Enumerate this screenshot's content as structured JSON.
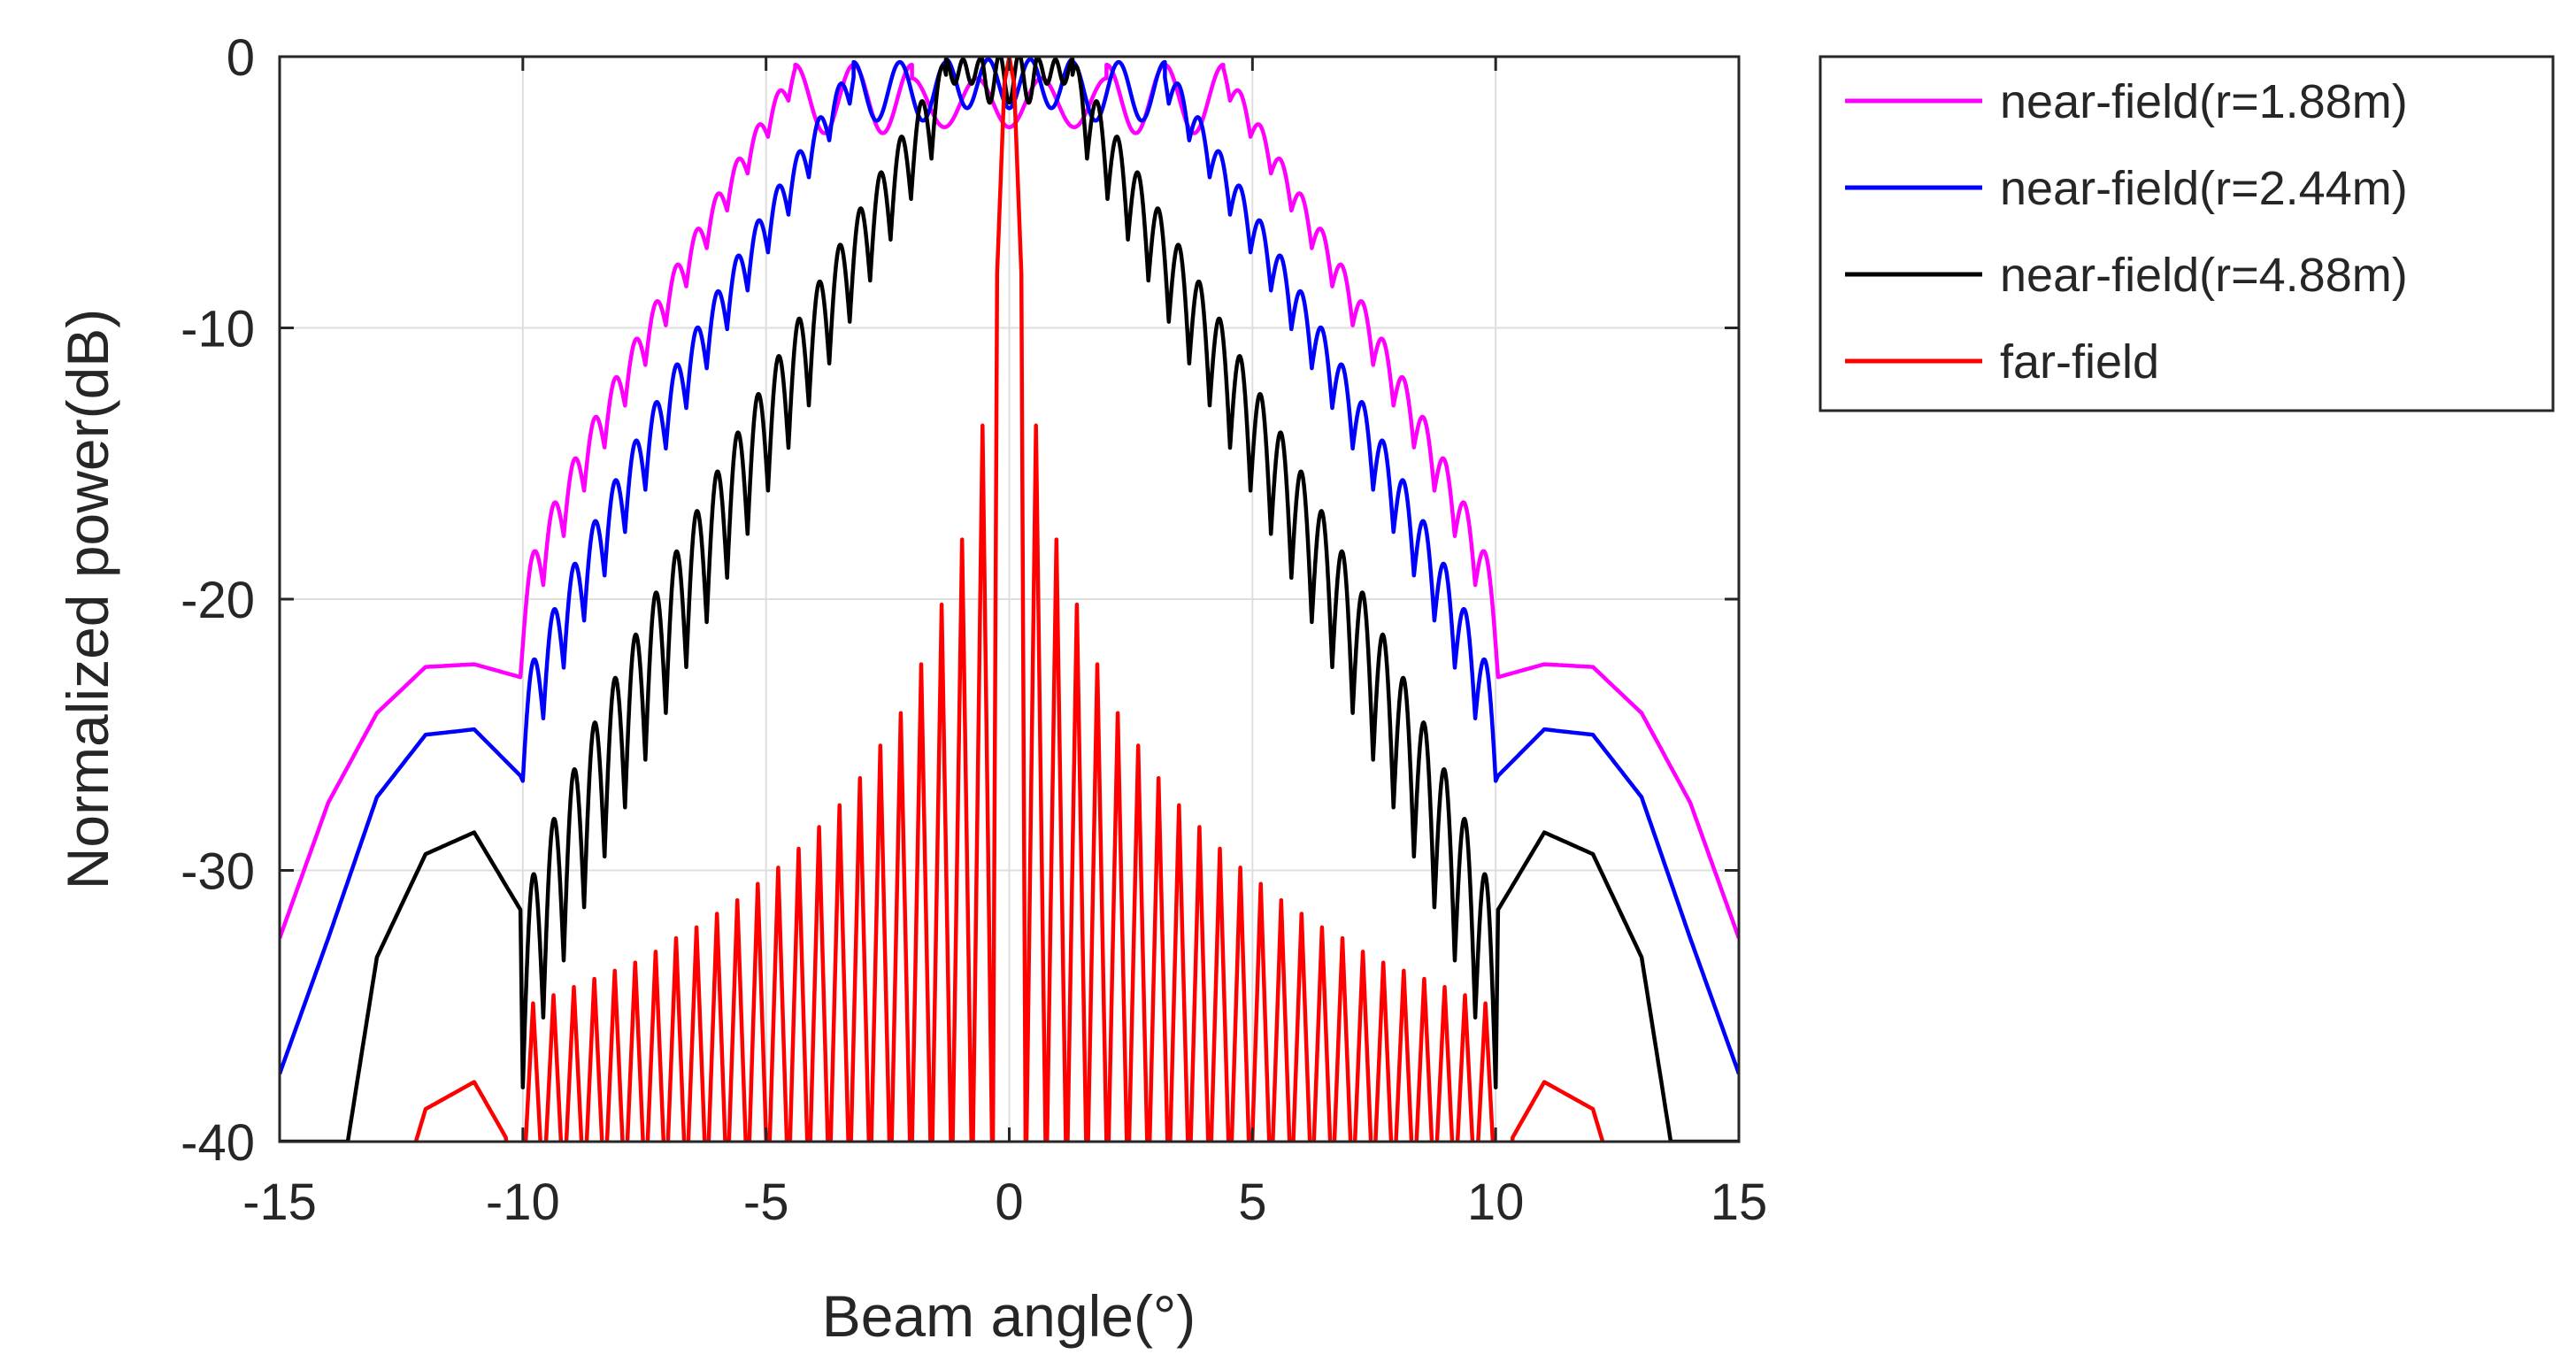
{
  "chart_data": {
    "type": "line",
    "title": "",
    "xlabel": "Beam angle(°)",
    "ylabel": "Normalized power(dB)",
    "xlim": [
      -15,
      15
    ],
    "ylim": [
      -40,
      0
    ],
    "xticks": [
      -15,
      -10,
      -5,
      0,
      5,
      10,
      15
    ],
    "xtick_labels": [
      "-15",
      "-10",
      "-5",
      "0",
      "5",
      "10",
      "15"
    ],
    "yticks": [
      0,
      -10,
      -20,
      -30,
      -40
    ],
    "ytick_labels": [
      "0",
      "-10",
      "-20",
      "-30",
      "-40"
    ],
    "grid": true,
    "legend_position": "outside-right-top",
    "series": [
      {
        "name": "near-field(r=1.88m)",
        "color": "#ff00ff",
        "shape": "nf",
        "side": [
          [
            -15,
            -32.5
          ],
          [
            -14,
            -27.5
          ],
          [
            -13,
            -24.2
          ],
          [
            -12,
            -22.5
          ],
          [
            -11,
            -22.4
          ],
          [
            -10,
            -22.9
          ]
        ],
        "env_inner": -0.3,
        "env_outer": -19.5,
        "env_peak": 4.4,
        "env_dip": 2.8,
        "osc_amp": 2.2,
        "osc_period": 0.42,
        "center_level": -1.7,
        "center_edge": 2.0
      },
      {
        "name": "near-field(r=2.44m)",
        "color": "#0000ff",
        "shape": "nf",
        "side": [
          [
            -15,
            -37.5
          ],
          [
            -14,
            -32.5
          ],
          [
            -13,
            -27.3
          ],
          [
            -12,
            -25.0
          ],
          [
            -11,
            -24.8
          ],
          [
            -10,
            -26.6
          ]
        ],
        "env_inner": -0.2,
        "env_outer": -23.5,
        "env_peak": 3.2,
        "env_dip": 2.4,
        "osc_amp": 3.2,
        "osc_period": 0.42,
        "center_level": -1.0,
        "center_edge": 1.3
      },
      {
        "name": "near-field(r=4.88m)",
        "color": "#000000",
        "shape": "nf",
        "side": [
          [
            -13.6,
            -40.0
          ],
          [
            -13,
            -33.2
          ],
          [
            -12,
            -29.4
          ],
          [
            -11,
            -28.6
          ],
          [
            -10,
            -31.6
          ]
        ],
        "env_inner": -0.1,
        "env_outer": -31.5,
        "env_peak": 1.3,
        "env_dip": 1.0,
        "osc_amp": 6.5,
        "osc_period": 0.42,
        "center_level": -0.8,
        "center_edge": 0.6
      },
      {
        "name": "far-field",
        "color": "#ff0000",
        "shape": "ff",
        "side": [
          [
            -12.2,
            -40.0
          ],
          [
            -12,
            -38.8
          ],
          [
            -11,
            -37.8
          ],
          [
            -10.3,
            -40.0
          ]
        ],
        "sidelobe_peaks": [
          -13.6,
          -17.8,
          -20.2,
          -22.4,
          -24.2,
          -25.4,
          -26.6,
          -27.6,
          -28.4,
          -29.2,
          -29.9,
          -30.5,
          -31.1,
          -31.6,
          -32.1,
          -32.5,
          -33.0,
          -33.4,
          -33.7,
          -34.0,
          -34.3,
          -34.6,
          -34.9
        ],
        "null_spacing": 0.42
      }
    ]
  },
  "legend": {
    "items": [
      {
        "label": "near-field(r=1.88m)",
        "color": "#ff00ff"
      },
      {
        "label": "near-field(r=2.44m)",
        "color": "#0000ff"
      },
      {
        "label": "near-field(r=4.88m)",
        "color": "#000000"
      },
      {
        "label": "far-field",
        "color": "#ff0000"
      }
    ]
  }
}
